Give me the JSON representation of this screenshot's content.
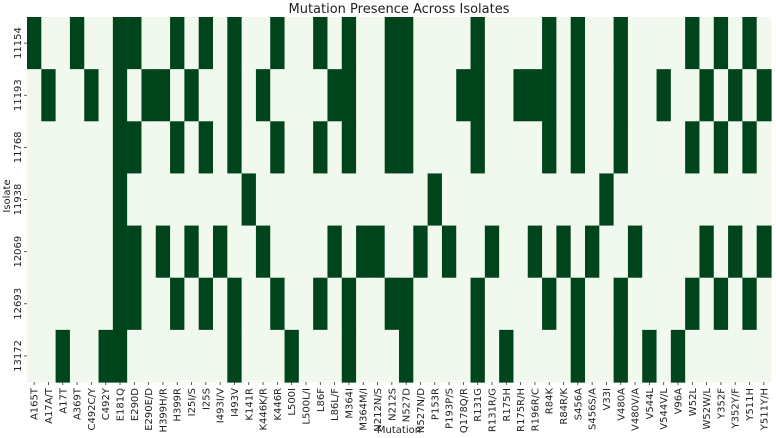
{
  "chart_data": {
    "type": "heatmap",
    "title": "Mutation Presence Across Isolates",
    "xlabel": "Mutation",
    "ylabel": "Isolate",
    "colors": {
      "absent": "#f1f9ef",
      "present": "#00441b"
    },
    "isolates": [
      "11154",
      "11193",
      "11768",
      "11938",
      "12069",
      "12693",
      "13172"
    ],
    "mutations": [
      "A165T",
      "A17A/T",
      "A17T",
      "A369T",
      "C492C/Y",
      "C492Y",
      "E181Q",
      "E290D",
      "E290E/D",
      "H399H/R",
      "H399R",
      "I25I/S",
      "I25S",
      "I493I/V",
      "I493V",
      "K141R",
      "K446K/R",
      "K446R",
      "L500I",
      "L500L/I",
      "L86F",
      "L86L/F",
      "M364I",
      "M364M/I",
      "N212N/S",
      "N212S",
      "N527D",
      "N527N/D",
      "P153R",
      "P193P/S",
      "Q178Q/R",
      "R131G",
      "R131R/G",
      "R175H",
      "R175R/H",
      "R196R/C",
      "R84K",
      "R84R/K",
      "S456A",
      "S456S/A",
      "V33I",
      "V480A",
      "V480V/A",
      "V544L",
      "V544V/L",
      "V96A",
      "W52L",
      "W52W/L",
      "Y352F",
      "Y352Y/F",
      "Y511H",
      "Y511Y/H"
    ],
    "presence": [
      [
        1,
        0,
        0,
        1,
        0,
        0,
        1,
        1,
        0,
        0,
        1,
        0,
        1,
        0,
        1,
        0,
        0,
        1,
        0,
        0,
        1,
        0,
        1,
        0,
        0,
        1,
        1,
        0,
        0,
        0,
        0,
        1,
        0,
        0,
        0,
        0,
        1,
        0,
        1,
        0,
        0,
        1,
        0,
        0,
        0,
        0,
        1,
        0,
        1,
        0,
        1,
        0
      ],
      [
        0,
        1,
        0,
        0,
        1,
        0,
        1,
        0,
        1,
        1,
        0,
        1,
        0,
        0,
        1,
        0,
        1,
        0,
        0,
        0,
        0,
        1,
        1,
        0,
        0,
        1,
        1,
        0,
        0,
        0,
        1,
        1,
        0,
        0,
        1,
        1,
        1,
        0,
        1,
        0,
        0,
        1,
        0,
        0,
        1,
        0,
        0,
        1,
        0,
        1,
        0,
        1
      ],
      [
        0,
        0,
        0,
        0,
        0,
        0,
        1,
        1,
        0,
        0,
        1,
        0,
        1,
        0,
        1,
        0,
        0,
        1,
        0,
        0,
        1,
        0,
        1,
        0,
        0,
        1,
        1,
        0,
        0,
        0,
        0,
        1,
        0,
        0,
        0,
        0,
        1,
        0,
        1,
        0,
        0,
        1,
        0,
        0,
        0,
        0,
        1,
        0,
        1,
        0,
        1,
        0
      ],
      [
        0,
        0,
        0,
        0,
        0,
        0,
        1,
        0,
        0,
        0,
        0,
        0,
        0,
        0,
        0,
        1,
        0,
        0,
        0,
        0,
        0,
        0,
        0,
        0,
        0,
        0,
        0,
        0,
        1,
        0,
        0,
        0,
        0,
        0,
        0,
        0,
        0,
        0,
        0,
        0,
        1,
        0,
        0,
        0,
        0,
        0,
        0,
        0,
        0,
        0,
        0,
        0
      ],
      [
        0,
        0,
        0,
        0,
        0,
        0,
        1,
        1,
        0,
        1,
        0,
        1,
        0,
        1,
        0,
        0,
        1,
        0,
        0,
        0,
        0,
        1,
        0,
        1,
        1,
        0,
        0,
        1,
        0,
        1,
        0,
        0,
        1,
        0,
        0,
        1,
        0,
        1,
        0,
        1,
        0,
        0,
        1,
        0,
        0,
        0,
        0,
        1,
        0,
        1,
        0,
        1
      ],
      [
        0,
        0,
        0,
        0,
        0,
        0,
        1,
        1,
        0,
        0,
        1,
        0,
        1,
        0,
        1,
        0,
        0,
        1,
        0,
        0,
        1,
        0,
        1,
        0,
        0,
        1,
        1,
        0,
        0,
        0,
        0,
        1,
        0,
        0,
        0,
        0,
        1,
        0,
        1,
        0,
        0,
        1,
        0,
        0,
        0,
        0,
        1,
        0,
        1,
        0,
        1,
        0
      ],
      [
        0,
        0,
        1,
        0,
        0,
        1,
        1,
        0,
        0,
        0,
        0,
        0,
        0,
        0,
        1,
        0,
        0,
        0,
        1,
        0,
        0,
        0,
        1,
        0,
        0,
        0,
        1,
        0,
        0,
        0,
        0,
        1,
        0,
        1,
        0,
        0,
        0,
        0,
        1,
        0,
        0,
        1,
        0,
        1,
        0,
        1,
        0,
        0,
        0,
        0,
        0,
        0
      ]
    ]
  }
}
